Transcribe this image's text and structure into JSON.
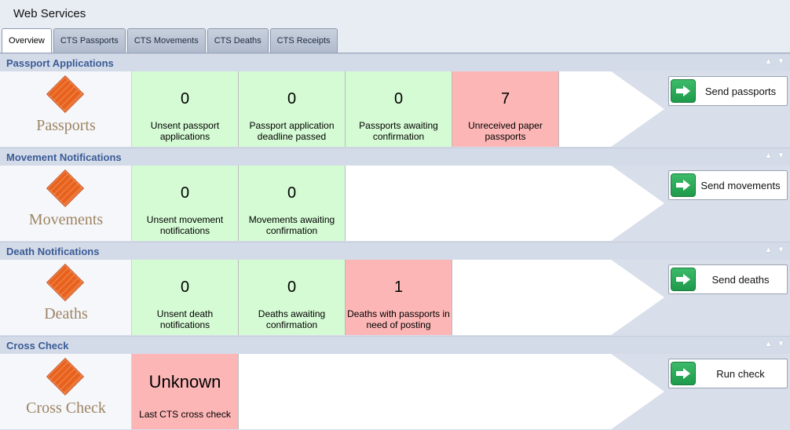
{
  "app": {
    "title": "Web Services"
  },
  "tabs": [
    {
      "label": "Overview",
      "active": true
    },
    {
      "label": "CTS Passports",
      "active": false
    },
    {
      "label": "CTS Movements",
      "active": false
    },
    {
      "label": "CTS Deaths",
      "active": false
    },
    {
      "label": "CTS Receipts",
      "active": false
    }
  ],
  "colors": {
    "green_cell": "#d5fbd4",
    "red_cell": "#fcb6b6",
    "header_text": "#3a5b96"
  },
  "sections": [
    {
      "title": "Passport Applications",
      "icon_label": "Passports",
      "button_label": "Send passports",
      "cells": [
        {
          "value": "0",
          "label": "Unsent passport applications",
          "status": "green"
        },
        {
          "value": "0",
          "label": "Passport application deadline passed",
          "status": "green"
        },
        {
          "value": "0",
          "label": "Passports awaiting confirmation",
          "status": "green"
        },
        {
          "value": "7",
          "label": "Unreceived paper passports",
          "status": "red"
        }
      ]
    },
    {
      "title": "Movement Notifications",
      "icon_label": "Movements",
      "button_label": "Send movements",
      "cells": [
        {
          "value": "0",
          "label": "Unsent movement notifications",
          "status": "green"
        },
        {
          "value": "0",
          "label": "Movements awaiting confirmation",
          "status": "green"
        }
      ]
    },
    {
      "title": "Death Notifications",
      "icon_label": "Deaths",
      "button_label": "Send deaths",
      "cells": [
        {
          "value": "0",
          "label": "Unsent death notifications",
          "status": "green"
        },
        {
          "value": "0",
          "label": "Deaths awaiting confirmation",
          "status": "green"
        },
        {
          "value": "1",
          "label": "Deaths with passports in need of posting",
          "status": "red"
        }
      ]
    },
    {
      "title": "Cross Check",
      "icon_label": "Cross Check",
      "button_label": "Run check",
      "cells": [
        {
          "value": "Unknown",
          "label": "Last CTS cross check",
          "status": "red"
        }
      ]
    }
  ]
}
